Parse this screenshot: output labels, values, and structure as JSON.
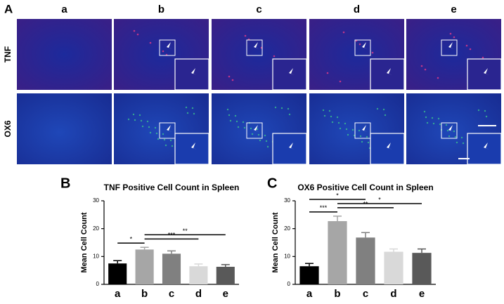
{
  "panel_a": {
    "label": "A",
    "columns": [
      "a",
      "b",
      "c",
      "d",
      "e"
    ],
    "rows": [
      "TNF",
      "OX6"
    ]
  },
  "chart_data": [
    {
      "type": "bar",
      "panel": "B",
      "title": "TNF Positive Cell Count in Spleen",
      "ylabel": "Mean Cell Count",
      "categories": [
        "a",
        "b",
        "c",
        "d",
        "e"
      ],
      "values": [
        7.5,
        12.5,
        11,
        6.5,
        6.3
      ],
      "errors": [
        1,
        0.8,
        1,
        0.8,
        0.8
      ],
      "colors": [
        "#000000",
        "#a6a6a6",
        "#808080",
        "#d9d9d9",
        "#595959"
      ],
      "ylim": [
        0,
        30
      ],
      "yticks": [
        0,
        10,
        20,
        30
      ],
      "annotations": [
        {
          "from": "a",
          "to": "b",
          "label": "*"
        },
        {
          "from": "b",
          "to": "d",
          "label": "***"
        },
        {
          "from": "b",
          "to": "e",
          "label": "**"
        }
      ]
    },
    {
      "type": "bar",
      "panel": "C",
      "title": "OX6 Positive Cell Count in Spleen",
      "ylabel": "Mean Cell Count",
      "categories": [
        "a",
        "b",
        "c",
        "d",
        "e"
      ],
      "values": [
        6.5,
        22.7,
        16.8,
        11.7,
        11.3
      ],
      "errors": [
        1,
        1.8,
        1.8,
        1,
        1.4
      ],
      "colors": [
        "#000000",
        "#a6a6a6",
        "#808080",
        "#d9d9d9",
        "#595959"
      ],
      "ylim": [
        0,
        30
      ],
      "yticks": [
        0,
        10,
        20,
        30
      ],
      "annotations": [
        {
          "from": "a",
          "to": "b",
          "label": "***"
        },
        {
          "from": "b",
          "to": "d",
          "label": "**"
        },
        {
          "from": "b",
          "to": "e",
          "label": "*"
        },
        {
          "from": "a",
          "to": "c",
          "label": "*"
        }
      ]
    }
  ]
}
